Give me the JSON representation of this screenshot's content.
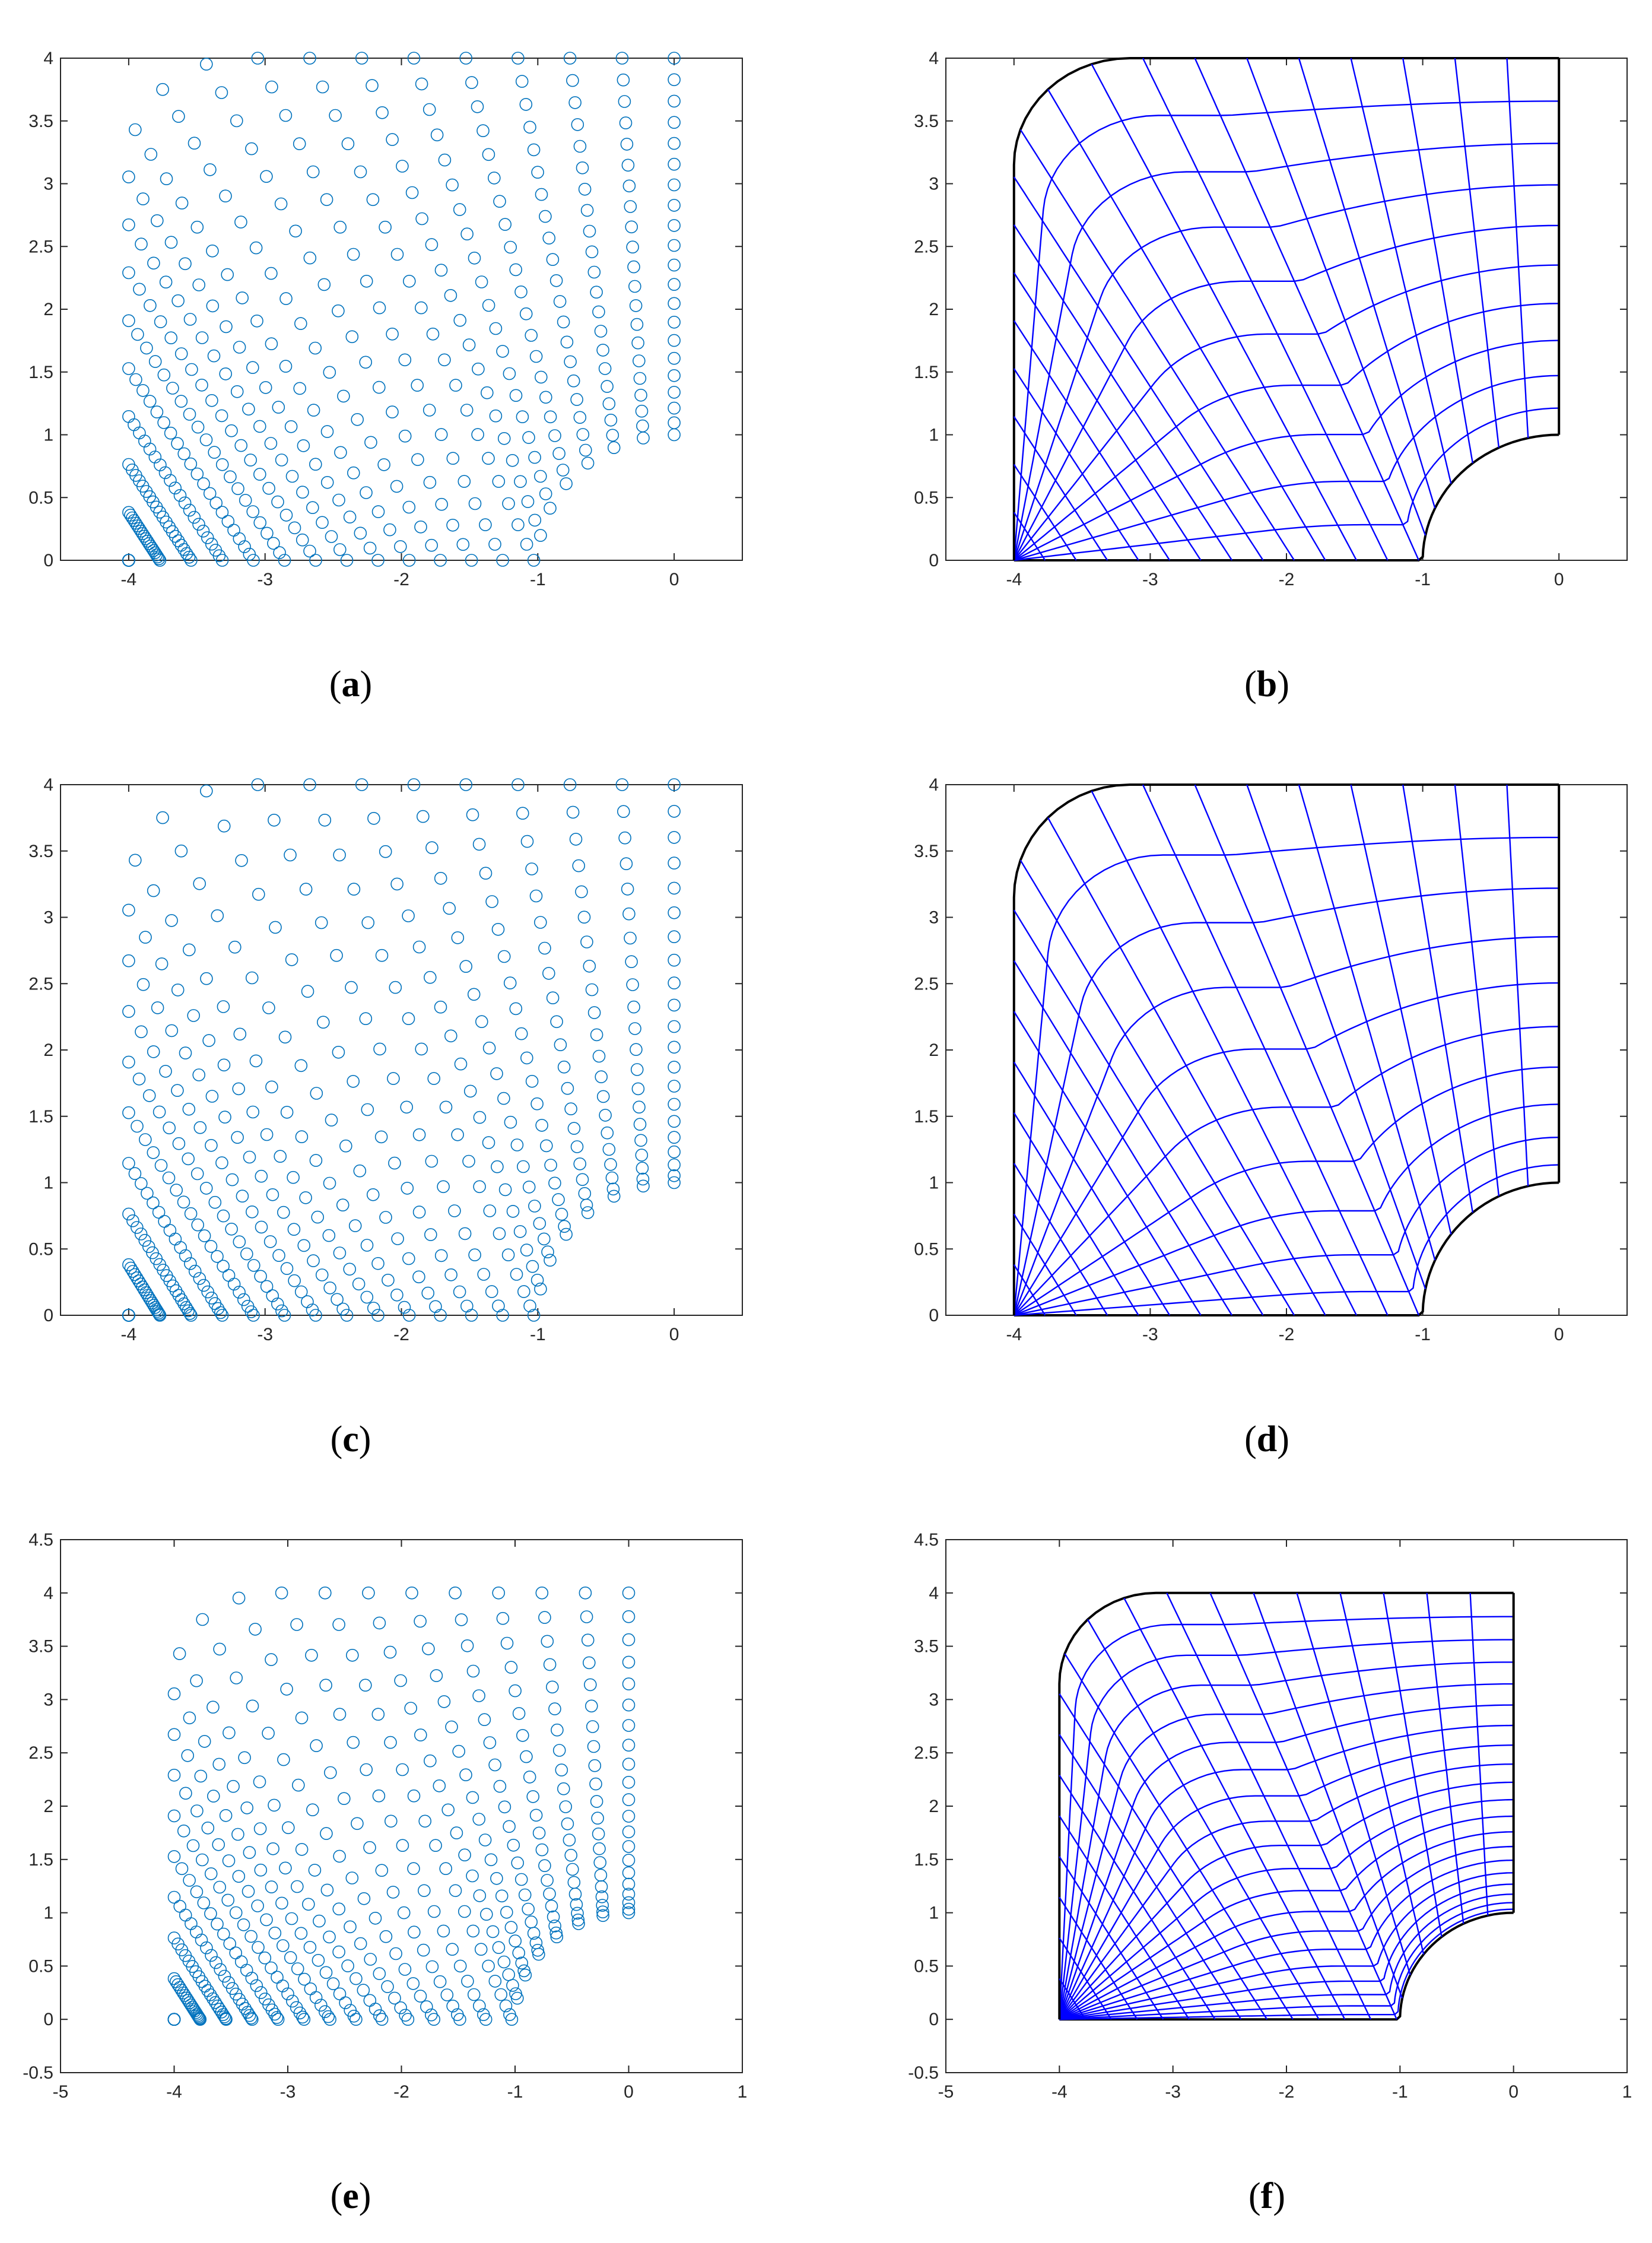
{
  "figure": {
    "colors": {
      "scatter_marker": "#0072BD",
      "mesh_line": "#0000FF",
      "boundary": "#000000",
      "axes": "#262626",
      "background": "#FFFFFF"
    }
  },
  "chart_data": [
    {
      "panel": "a",
      "label": "a",
      "type": "scatter",
      "marker": "circle-open",
      "domain": "quarter-annulus-like region: left edge x=-4, top edge y=4, right edge x=0 from y=1 to 4, bottom edge y=0 from x=-4 to -1, concave arc of radius 1 centred at (0,0)",
      "grid_size": [
        21,
        21
      ],
      "xlim": [
        -4.5,
        0.5
      ],
      "ylim": [
        0,
        4
      ],
      "xticks": [
        "-4",
        "-3",
        "-2",
        "-1",
        "0"
      ],
      "yticks": [
        "0",
        "0.5",
        "1",
        "1.5",
        "2",
        "2.5",
        "3",
        "3.5",
        "4"
      ],
      "grid": false
    },
    {
      "panel": "b",
      "label": "b",
      "type": "line",
      "style": "structured-mesh",
      "mesh_lines": [
        11,
        21
      ],
      "xlim": [
        -4.5,
        0.5
      ],
      "ylim": [
        0,
        4
      ],
      "xticks": [
        "-4",
        "-3",
        "-2",
        "-1",
        "0"
      ],
      "yticks": [
        "0",
        "0.5",
        "1",
        "1.5",
        "2",
        "2.5",
        "3",
        "3.5",
        "4"
      ],
      "grid": false
    },
    {
      "panel": "c",
      "label": "c",
      "type": "scatter",
      "marker": "circle-open",
      "grid_size": [
        21,
        21
      ],
      "xlim": [
        -4.5,
        0.5
      ],
      "ylim": [
        0,
        4
      ],
      "xticks": [
        "-4",
        "-3",
        "-2",
        "-1",
        "0"
      ],
      "yticks": [
        "0",
        "0.5",
        "1",
        "1.5",
        "2",
        "2.5",
        "3",
        "3.5",
        "4"
      ],
      "grid": false
    },
    {
      "panel": "d",
      "label": "d",
      "type": "line",
      "style": "structured-mesh",
      "mesh_lines": [
        11,
        21
      ],
      "xlim": [
        -4.5,
        0.5
      ],
      "ylim": [
        0,
        4
      ],
      "xticks": [
        "-4",
        "-3",
        "-2",
        "-1",
        "0"
      ],
      "yticks": [
        "0",
        "0.5",
        "1",
        "1.5",
        "2",
        "2.5",
        "3",
        "3.5",
        "4"
      ],
      "grid": false
    },
    {
      "panel": "e",
      "label": "e",
      "type": "scatter",
      "marker": "circle-open",
      "grid_size": [
        21,
        21
      ],
      "xlim": [
        -5,
        1
      ],
      "ylim": [
        -0.5,
        4.5
      ],
      "xticks": [
        "-5",
        "-4",
        "-3",
        "-2",
        "-1",
        "0",
        "1"
      ],
      "yticks": [
        "-0.5",
        "0",
        "0.5",
        "1",
        "1.5",
        "2",
        "2.5",
        "3",
        "3.5",
        "4",
        "4.5"
      ],
      "grid": false
    },
    {
      "panel": "f",
      "label": "f",
      "type": "line",
      "style": "structured-mesh",
      "mesh_lines": [
        21,
        21
      ],
      "xlim": [
        -5,
        1
      ],
      "ylim": [
        -0.5,
        4.5
      ],
      "xticks": [
        "-5",
        "-4",
        "-3",
        "-2",
        "-1",
        "0",
        "1"
      ],
      "yticks": [
        "-0.5",
        "0",
        "0.5",
        "1",
        "1.5",
        "2",
        "2.5",
        "3",
        "3.5",
        "4",
        "4.5"
      ],
      "grid": false
    }
  ]
}
